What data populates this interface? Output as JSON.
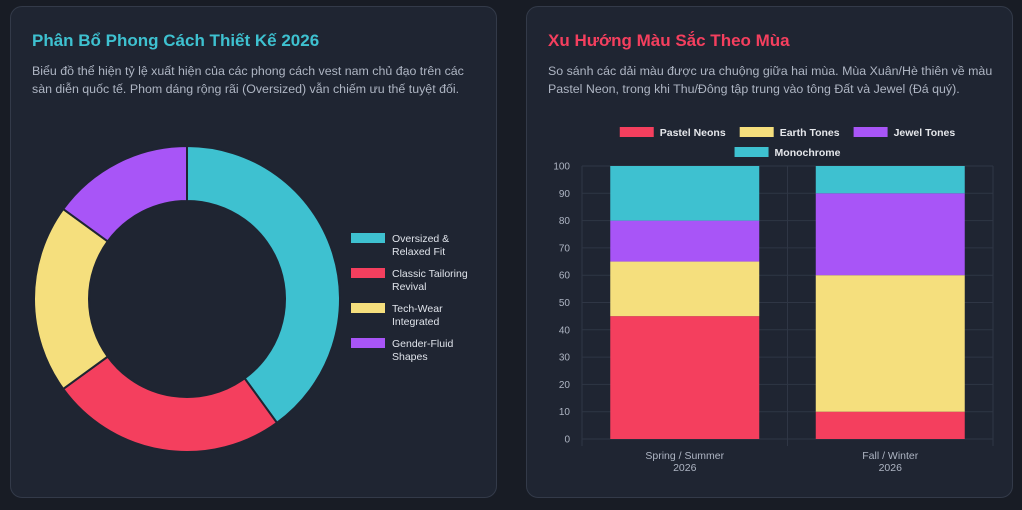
{
  "left_card": {
    "title": "Phân Bổ Phong Cách Thiết Kế 2026",
    "description": "Biểu đồ thể hiện tỷ lệ xuất hiện của các phong cách vest nam chủ đạo trên các sàn diễn quốc tế. Phom dáng rộng rãi (Oversized) vẫn chiếm ưu thế tuyệt đối."
  },
  "right_card": {
    "title": "Xu Hướng Màu Sắc Theo Mùa",
    "description": "So sánh các dải màu được ưa chuộng giữa hai mùa. Mùa Xuân/Hè thiên về màu Pastel Neon, trong khi Thu/Đông tập trung vào tông Đất và Jewel (Đá quý)."
  },
  "chart_data": [
    {
      "type": "pie",
      "variant": "doughnut",
      "title": "Phân Bổ Phong Cách Thiết Kế 2026",
      "legend_position": "right",
      "labels": [
        [
          "Oversized &",
          "Relaxed Fit"
        ],
        [
          "Classic Tailoring",
          "Revival"
        ],
        [
          "Tech-Wear",
          "Integrated"
        ],
        [
          "Gender-Fluid",
          "Shapes"
        ]
      ],
      "values": [
        40,
        25,
        20,
        15
      ],
      "colors": [
        "#3ec1d0",
        "#f43f5e",
        "#f5df7d",
        "#a855f7"
      ]
    },
    {
      "type": "bar",
      "stacked": true,
      "title": "Xu Hướng Màu Sắc Theo Mùa",
      "legend_position": "top",
      "categories": [
        [
          "Spring / Summer",
          "2026"
        ],
        [
          "Fall / Winter",
          "2026"
        ]
      ],
      "series": [
        {
          "name": "Pastel Neons",
          "values": [
            45,
            10
          ],
          "color": "#f43f5e"
        },
        {
          "name": "Earth Tones",
          "values": [
            20,
            50
          ],
          "color": "#f5df7d"
        },
        {
          "name": "Jewel Tones",
          "values": [
            15,
            30
          ],
          "color": "#a855f7"
        },
        {
          "name": "Monochrome",
          "values": [
            20,
            10
          ],
          "color": "#3ec1d0"
        }
      ],
      "ylim": [
        0,
        100
      ],
      "yticks": [
        0,
        10,
        20,
        30,
        40,
        50,
        60,
        70,
        80,
        90,
        100
      ],
      "grid": true
    }
  ]
}
